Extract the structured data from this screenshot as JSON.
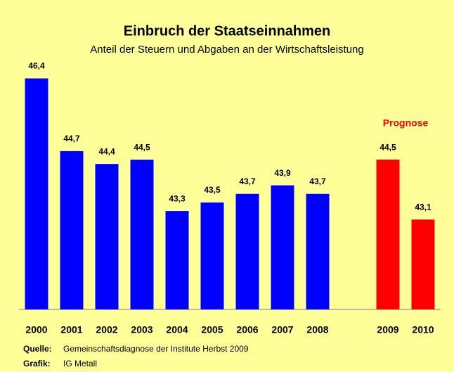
{
  "chart_data": {
    "type": "bar",
    "title": "Einbruch der Staatseinnahmen",
    "subtitle": "Anteil der Steuern und Abgaben an der Wirtschaftsleistung",
    "categories": [
      "2000",
      "2001",
      "2002",
      "2003",
      "2004",
      "2005",
      "2006",
      "2007",
      "2008",
      null,
      "2009",
      "2010"
    ],
    "values": [
      46.4,
      44.7,
      44.4,
      44.5,
      43.3,
      43.5,
      43.7,
      43.9,
      43.7,
      null,
      44.5,
      43.1
    ],
    "value_labels": [
      "46,4",
      "44,7",
      "44,4",
      "44,5",
      "43,3",
      "43,5",
      "43,7",
      "43,9",
      "43,7",
      null,
      "44,5",
      "43,1"
    ],
    "colors": [
      "#0000ff",
      "#0000ff",
      "#0000ff",
      "#0000ff",
      "#0000ff",
      "#0000ff",
      "#0000ff",
      "#0000ff",
      "#0000ff",
      null,
      "#ff0000",
      "#ff0000"
    ],
    "annotation": {
      "text": "Prognose",
      "color": "#ff0000"
    },
    "ylim": [
      41,
      47
    ],
    "source": {
      "label": "Quelle:",
      "text": "Gemeinschaftsdiagnose der Institute Herbst 2009"
    },
    "credit": {
      "label": "Grafik:",
      "text": "IG Metall"
    }
  }
}
